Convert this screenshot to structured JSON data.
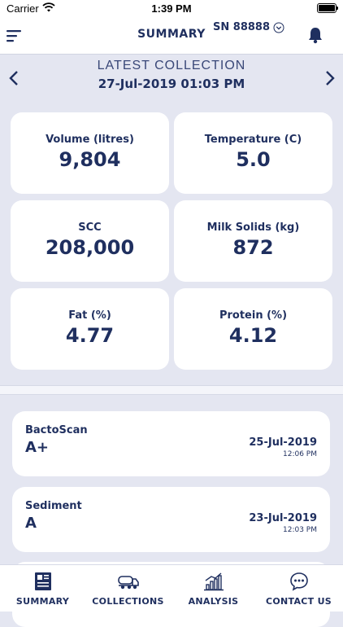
{
  "status_bar": {
    "carrier": "Carrier",
    "time": "1:39 PM"
  },
  "nav": {
    "title": "SUMMARY",
    "serial": "SN 88888"
  },
  "collection": {
    "label": "LATEST COLLECTION",
    "datetime": "27-Jul-2019 01:03 PM"
  },
  "metrics": [
    {
      "label": "Volume (litres)",
      "value": "9,804"
    },
    {
      "label": "Temperature (C)",
      "value": "5.0"
    },
    {
      "label": "SCC",
      "value": "208,000"
    },
    {
      "label": "Milk Solids (kg)",
      "value": "872"
    },
    {
      "label": "Fat (%)",
      "value": "4.77"
    },
    {
      "label": "Protein (%)",
      "value": "4.12"
    }
  ],
  "results": [
    {
      "label": "BactoScan",
      "grade": "A+",
      "date": "25-Jul-2019",
      "time": "12:06 PM"
    },
    {
      "label": "Sediment",
      "grade": "A",
      "date": "23-Jul-2019",
      "time": "12:03 PM"
    }
  ],
  "tabs": [
    {
      "label": "SUMMARY",
      "icon": "summary-icon"
    },
    {
      "label": "COLLECTIONS",
      "icon": "tanker-truck-icon"
    },
    {
      "label": "ANALYSIS",
      "icon": "bar-chart-icon"
    },
    {
      "label": "CONTACT US",
      "icon": "chat-bubble-icon"
    }
  ],
  "colors": {
    "primary": "#1f2f5f",
    "background": "#e4e6f1",
    "card": "#ffffff"
  }
}
